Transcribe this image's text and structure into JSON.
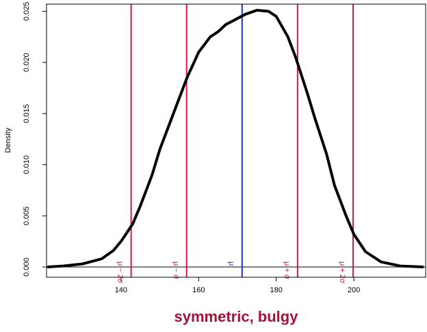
{
  "chart_data": {
    "type": "line",
    "title": "symmetric, bulgy",
    "title_color": "#a3123a",
    "y_label": "Density",
    "xlim": [
      120.8,
      218.5
    ],
    "ylim": [
      -0.001,
      0.0257
    ],
    "xticks": [
      140,
      160,
      180,
      200
    ],
    "yticks": [
      {
        "value": 0,
        "label": "0.000"
      },
      {
        "value": 0.005,
        "label": "0.005"
      },
      {
        "value": 0.01,
        "label": "0.010"
      },
      {
        "value": 0.015,
        "label": "0.015"
      },
      {
        "value": 0.02,
        "label": "0.020"
      },
      {
        "value": 0.025,
        "label": "0.025"
      }
    ],
    "x": [
      121,
      125,
      130,
      135,
      138,
      140,
      143,
      145,
      148,
      150,
      153,
      155,
      157,
      160,
      163,
      165,
      167,
      170,
      172,
      175,
      178,
      180,
      183,
      185,
      188,
      190,
      193,
      195,
      198,
      200,
      203,
      207,
      212,
      218
    ],
    "series": [
      {
        "name": "density",
        "color": "#000000",
        "values": [
          0.0,
          0.0001,
          0.0003,
          0.0008,
          0.0016,
          0.0025,
          0.0042,
          0.006,
          0.009,
          0.0115,
          0.0145,
          0.0165,
          0.0185,
          0.021,
          0.0225,
          0.023,
          0.0237,
          0.0243,
          0.0247,
          0.0251,
          0.025,
          0.0245,
          0.0225,
          0.0205,
          0.017,
          0.0145,
          0.011,
          0.008,
          0.005,
          0.0032,
          0.0015,
          0.0005,
          0.0001,
          0.0
        ]
      }
    ],
    "vlines": [
      {
        "value": 142.6,
        "label": "μ − 2σ",
        "color": "#dc143c"
      },
      {
        "value": 156.9,
        "label": "μ − σ",
        "color": "#dc143c"
      },
      {
        "value": 171.2,
        "label": "μ",
        "color": "#1f2fc8"
      },
      {
        "value": 185.5,
        "label": "μ + σ",
        "color": "#dc143c"
      },
      {
        "value": 199.8,
        "label": "μ + 2σ",
        "color": "#dc143c"
      }
    ],
    "hline": 0
  }
}
